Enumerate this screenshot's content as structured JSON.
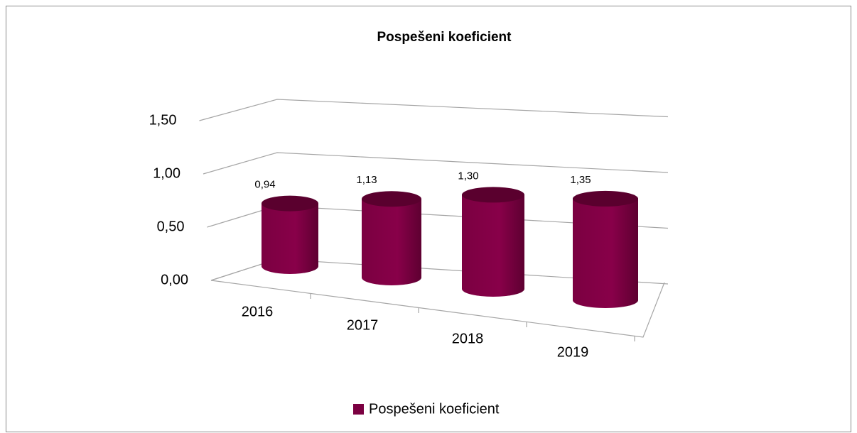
{
  "chart_data": {
    "type": "bar",
    "title": "Pospešeni koeficient",
    "categories": [
      "2016",
      "2017",
      "2018",
      "2019"
    ],
    "series": [
      {
        "name": "Pospešeni koeficient",
        "color": "#7b0041",
        "values": [
          0.94,
          1.13,
          1.3,
          1.35
        ],
        "value_labels": [
          "0,94",
          "1,13",
          "1,30",
          "1,35"
        ]
      }
    ],
    "ylim": [
      0,
      1.5
    ],
    "yticks": [
      {
        "value": 0,
        "label": "0,00"
      },
      {
        "value": 0.5,
        "label": "0,50"
      },
      {
        "value": 1,
        "label": "1,00"
      },
      {
        "value": 1.5,
        "label": "1,50"
      }
    ],
    "grid": true,
    "legend": "bottom"
  }
}
